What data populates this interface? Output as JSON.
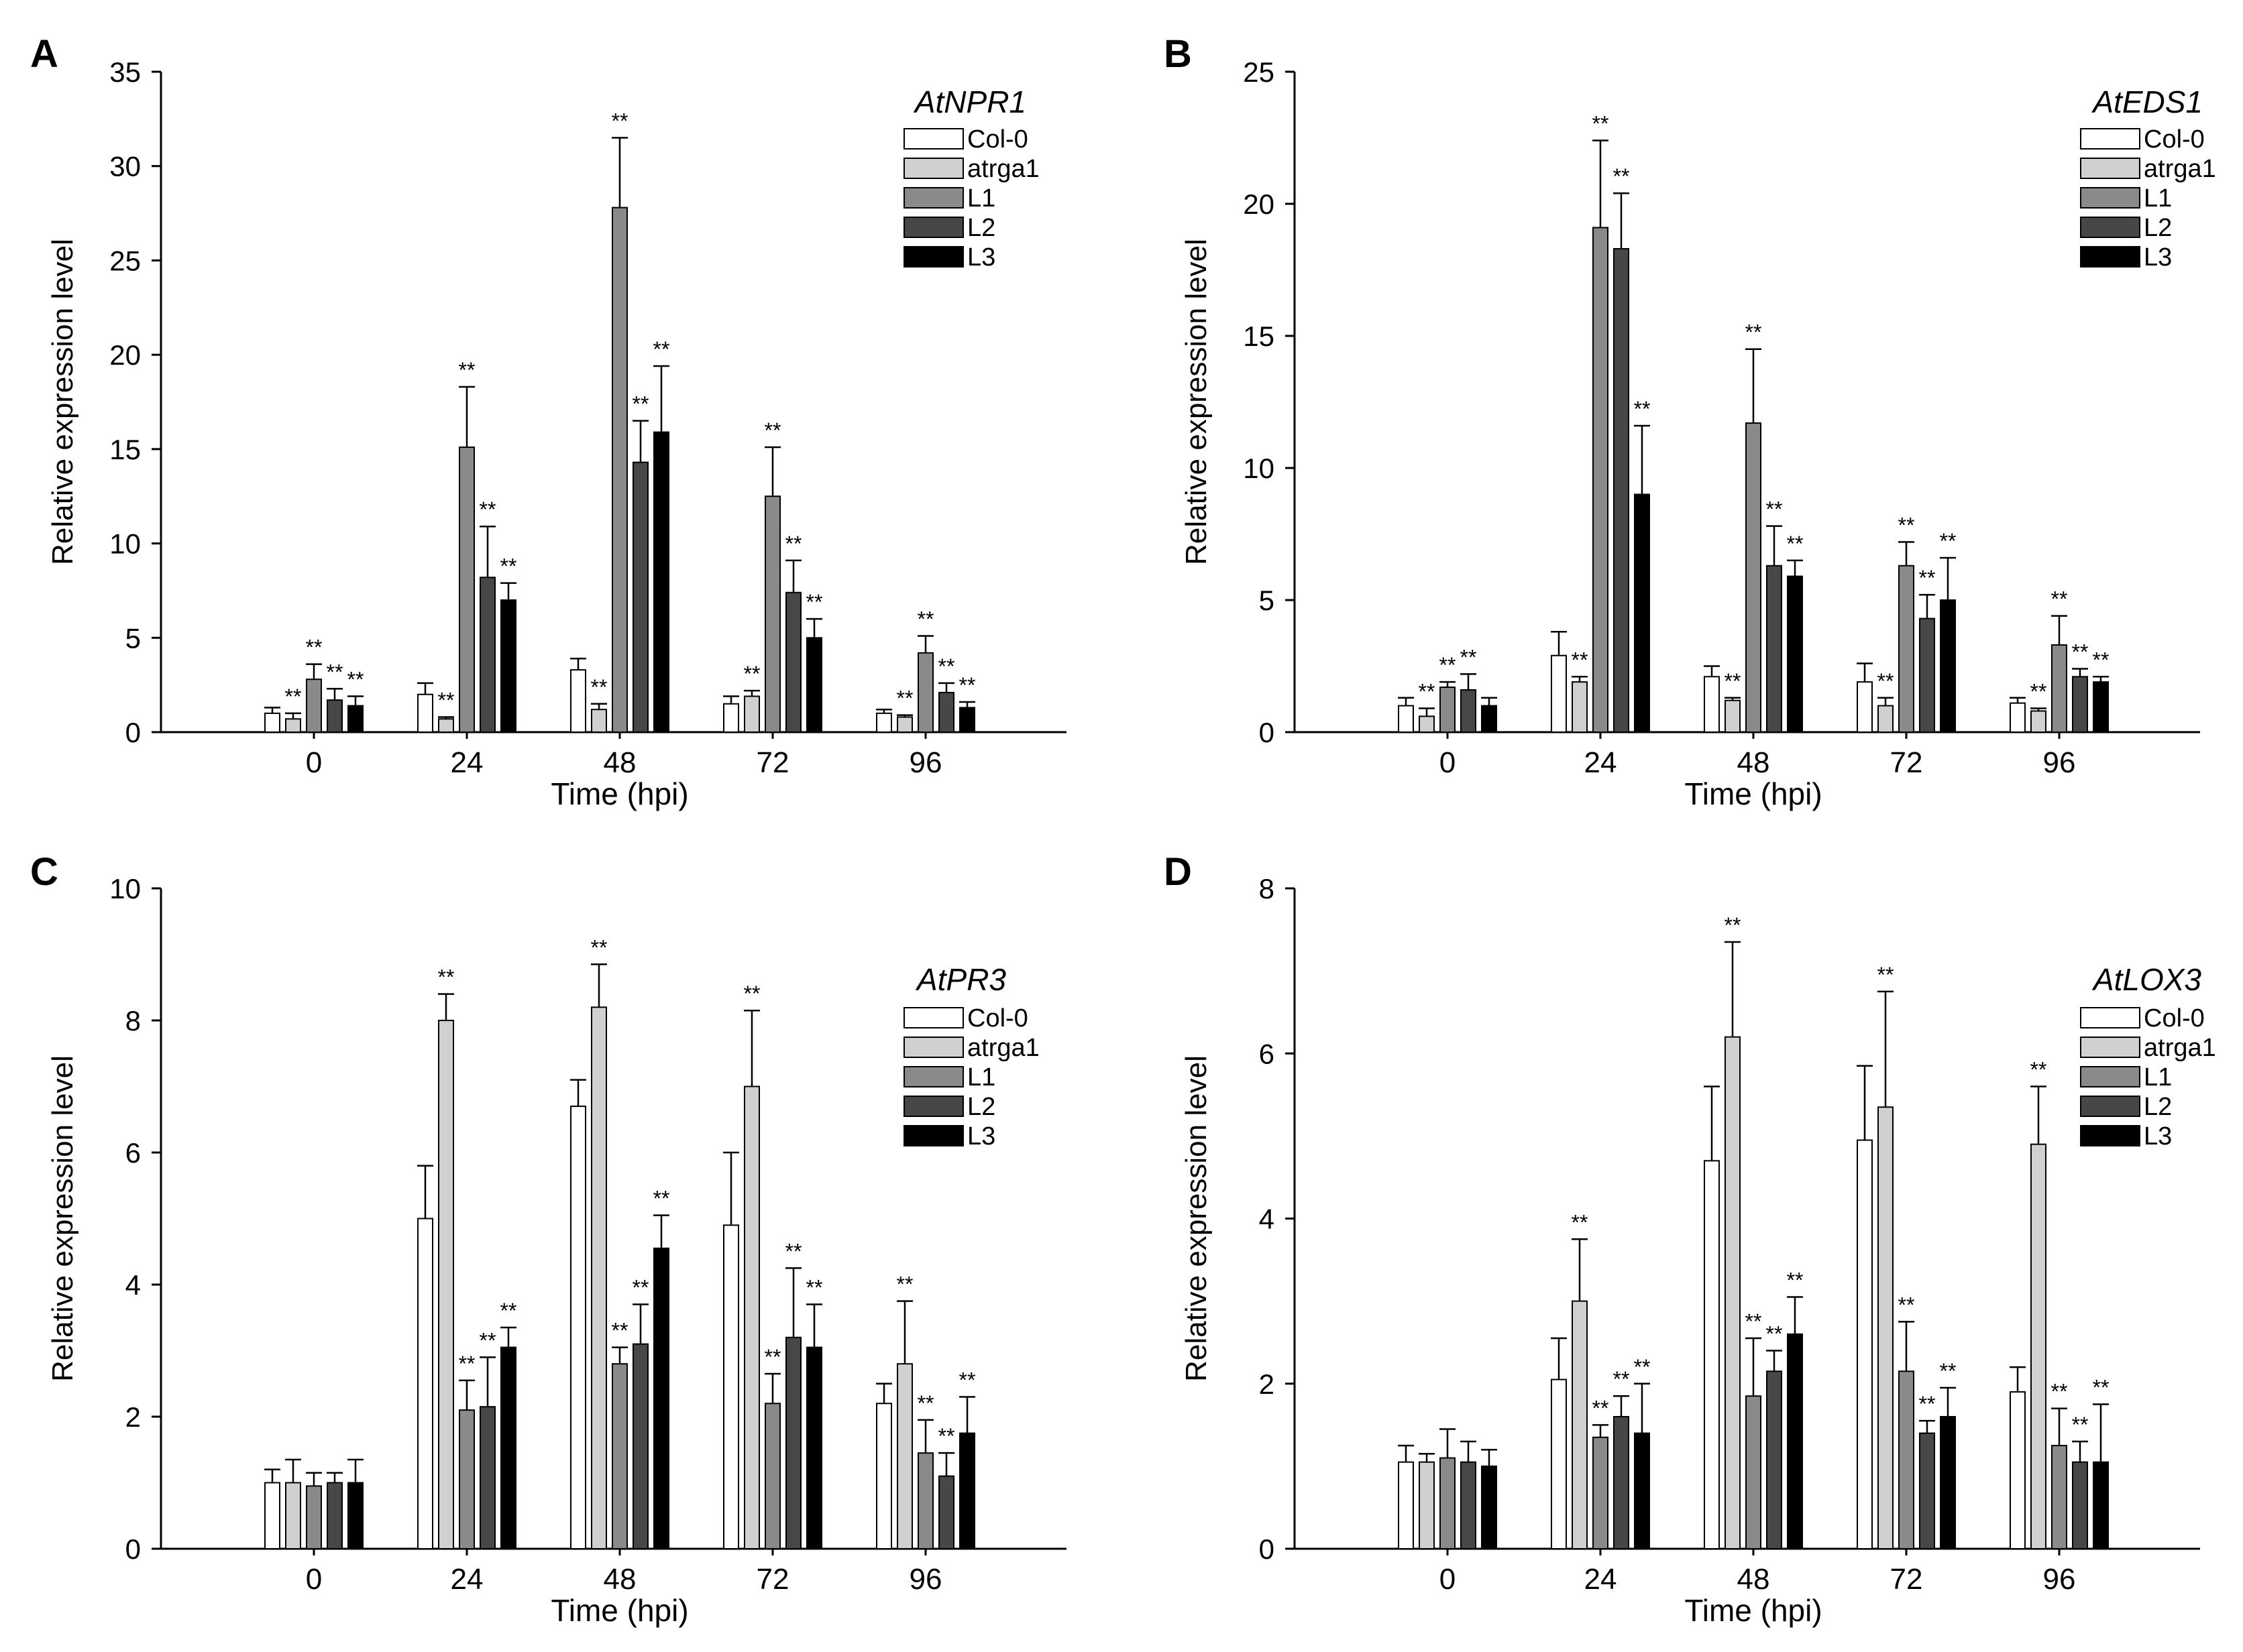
{
  "chart_data": [
    {
      "panel_label": "A",
      "type": "bar",
      "title": "AtNPR1",
      "xlabel": "Time (hpi)",
      "ylabel": "Relative expression level",
      "ylim": [
        0,
        35
      ],
      "yticks": [
        "0",
        "5",
        "10",
        "15",
        "20",
        "25",
        "30",
        "35"
      ],
      "categories": [
        "0",
        "24",
        "48",
        "72",
        "96"
      ],
      "legend_position": "top-right",
      "series": [
        {
          "name": "Col-0",
          "color": "#ffffff",
          "values": [
            1.0,
            2.0,
            3.3,
            1.5,
            1.0
          ],
          "errors": [
            0.3,
            0.6,
            0.6,
            0.4,
            0.2
          ],
          "sig": [
            "",
            "",
            "",
            "",
            ""
          ]
        },
        {
          "name": "atrga1",
          "color": "#d0d0d0",
          "values": [
            0.7,
            0.7,
            1.2,
            1.9,
            0.8
          ],
          "errors": [
            0.3,
            0.1,
            0.3,
            0.3,
            0.1
          ],
          "sig": [
            "**",
            "**",
            "**",
            "**",
            "**"
          ]
        },
        {
          "name": "L1",
          "color": "#8a8a8a",
          "values": [
            2.8,
            15.1,
            27.8,
            12.5,
            4.2
          ],
          "errors": [
            0.8,
            3.2,
            3.7,
            2.6,
            0.9
          ],
          "sig": [
            "**",
            "**",
            "**",
            "**",
            "**"
          ]
        },
        {
          "name": "L2",
          "color": "#474747",
          "values": [
            1.7,
            8.2,
            14.3,
            7.4,
            2.1
          ],
          "errors": [
            0.6,
            2.7,
            2.2,
            1.7,
            0.5
          ],
          "sig": [
            "**",
            "**",
            "**",
            "**",
            "**"
          ]
        },
        {
          "name": "L3",
          "color": "#000000",
          "values": [
            1.4,
            7.0,
            15.9,
            5.0,
            1.3
          ],
          "errors": [
            0.5,
            0.9,
            3.5,
            1.0,
            0.3
          ],
          "sig": [
            "**",
            "**",
            "**",
            "**",
            "**"
          ]
        }
      ]
    },
    {
      "panel_label": "B",
      "type": "bar",
      "title": "AtEDS1",
      "xlabel": "Time (hpi)",
      "ylabel": "Relative expression level",
      "ylim": [
        0,
        25
      ],
      "yticks": [
        "0",
        "5",
        "10",
        "15",
        "20",
        "25"
      ],
      "categories": [
        "0",
        "24",
        "48",
        "72",
        "96"
      ],
      "legend_position": "top-right",
      "series": [
        {
          "name": "Col-0",
          "color": "#ffffff",
          "values": [
            1.0,
            2.9,
            2.1,
            1.9,
            1.1
          ],
          "errors": [
            0.3,
            0.9,
            0.4,
            0.7,
            0.2
          ],
          "sig": [
            "",
            "",
            "",
            "",
            ""
          ]
        },
        {
          "name": "atrga1",
          "color": "#d0d0d0",
          "values": [
            0.6,
            1.9,
            1.2,
            1.0,
            0.8
          ],
          "errors": [
            0.3,
            0.2,
            0.1,
            0.3,
            0.1
          ],
          "sig": [
            "**",
            "**",
            "**",
            "**",
            "**"
          ]
        },
        {
          "name": "L1",
          "color": "#8a8a8a",
          "values": [
            1.7,
            19.1,
            11.7,
            6.3,
            3.3
          ],
          "errors": [
            0.2,
            3.3,
            2.8,
            0.9,
            1.1
          ],
          "sig": [
            "**",
            "**",
            "**",
            "**",
            "**"
          ]
        },
        {
          "name": "L2",
          "color": "#474747",
          "values": [
            1.6,
            18.3,
            6.3,
            4.3,
            2.1
          ],
          "errors": [
            0.6,
            2.1,
            1.5,
            0.9,
            0.3
          ],
          "sig": [
            "**",
            "**",
            "**",
            "**",
            "**"
          ]
        },
        {
          "name": "L3",
          "color": "#000000",
          "values": [
            1.0,
            9.0,
            5.9,
            5.0,
            1.9
          ],
          "errors": [
            0.3,
            2.6,
            0.6,
            1.6,
            0.2
          ],
          "sig": [
            "",
            "**",
            "**",
            "**",
            "**"
          ]
        }
      ]
    },
    {
      "panel_label": "C",
      "type": "bar",
      "title": "AtPR3",
      "xlabel": "Time (hpi)",
      "ylabel": "Relative expression level",
      "ylim": [
        0,
        10
      ],
      "yticks": [
        "0",
        "2",
        "4",
        "6",
        "8",
        "10"
      ],
      "categories": [
        "0",
        "24",
        "48",
        "72",
        "96"
      ],
      "legend_position": "right",
      "series": [
        {
          "name": "Col-0",
          "color": "#ffffff",
          "values": [
            1.0,
            5.0,
            6.7,
            4.9,
            2.2
          ],
          "errors": [
            0.2,
            0.8,
            0.4,
            1.1,
            0.3
          ],
          "sig": [
            "",
            "",
            "",
            "",
            ""
          ]
        },
        {
          "name": "atrga1",
          "color": "#d0d0d0",
          "values": [
            1.0,
            8.0,
            8.2,
            7.0,
            2.8
          ],
          "errors": [
            0.35,
            0.4,
            0.65,
            1.15,
            0.95
          ],
          "sig": [
            "",
            "**",
            "**",
            "**",
            "**"
          ]
        },
        {
          "name": "L1",
          "color": "#8a8a8a",
          "values": [
            0.95,
            2.1,
            2.8,
            2.2,
            1.45
          ],
          "errors": [
            0.2,
            0.45,
            0.25,
            0.45,
            0.5
          ],
          "sig": [
            "",
            "**",
            "**",
            "**",
            "**"
          ]
        },
        {
          "name": "L2",
          "color": "#474747",
          "values": [
            1.0,
            2.15,
            3.1,
            3.2,
            1.1
          ],
          "errors": [
            0.15,
            0.75,
            0.6,
            1.05,
            0.35
          ],
          "sig": [
            "",
            "**",
            "**",
            "**",
            "**"
          ]
        },
        {
          "name": "L3",
          "color": "#000000",
          "values": [
            1.0,
            3.05,
            4.55,
            3.05,
            1.75
          ],
          "errors": [
            0.35,
            0.3,
            0.5,
            0.65,
            0.55
          ],
          "sig": [
            "",
            "**",
            "**",
            "**",
            "**"
          ]
        }
      ]
    },
    {
      "panel_label": "D",
      "type": "bar",
      "title": "AtLOX3",
      "xlabel": "Time (hpi)",
      "ylabel": "Relative expression level",
      "ylim": [
        0,
        8
      ],
      "yticks": [
        "0",
        "2",
        "4",
        "6",
        "8"
      ],
      "categories": [
        "0",
        "24",
        "48",
        "72",
        "96"
      ],
      "legend_position": "right",
      "series": [
        {
          "name": "Col-0",
          "color": "#ffffff",
          "values": [
            1.05,
            2.05,
            4.7,
            4.95,
            1.9
          ],
          "errors": [
            0.2,
            0.5,
            0.9,
            0.9,
            0.3
          ],
          "sig": [
            "",
            "",
            "",
            "",
            ""
          ]
        },
        {
          "name": "atrga1",
          "color": "#d0d0d0",
          "values": [
            1.05,
            3.0,
            6.2,
            5.35,
            4.9
          ],
          "errors": [
            0.1,
            0.75,
            1.15,
            1.4,
            0.7
          ],
          "sig": [
            "",
            "**",
            "**",
            "**",
            "**"
          ]
        },
        {
          "name": "L1",
          "color": "#8a8a8a",
          "values": [
            1.1,
            1.35,
            1.85,
            2.15,
            1.25
          ],
          "errors": [
            0.35,
            0.15,
            0.7,
            0.6,
            0.45
          ],
          "sig": [
            "",
            "**",
            "**",
            "**",
            "**"
          ]
        },
        {
          "name": "L2",
          "color": "#474747",
          "values": [
            1.05,
            1.6,
            2.15,
            1.4,
            1.05
          ],
          "errors": [
            0.25,
            0.25,
            0.25,
            0.15,
            0.25
          ],
          "sig": [
            "",
            "**",
            "**",
            "**",
            "**"
          ]
        },
        {
          "name": "L3",
          "color": "#000000",
          "values": [
            1.0,
            1.4,
            2.6,
            1.6,
            1.05
          ],
          "errors": [
            0.2,
            0.6,
            0.45,
            0.35,
            0.7
          ],
          "sig": [
            "",
            "**",
            "**",
            "**",
            "**"
          ]
        }
      ]
    }
  ]
}
